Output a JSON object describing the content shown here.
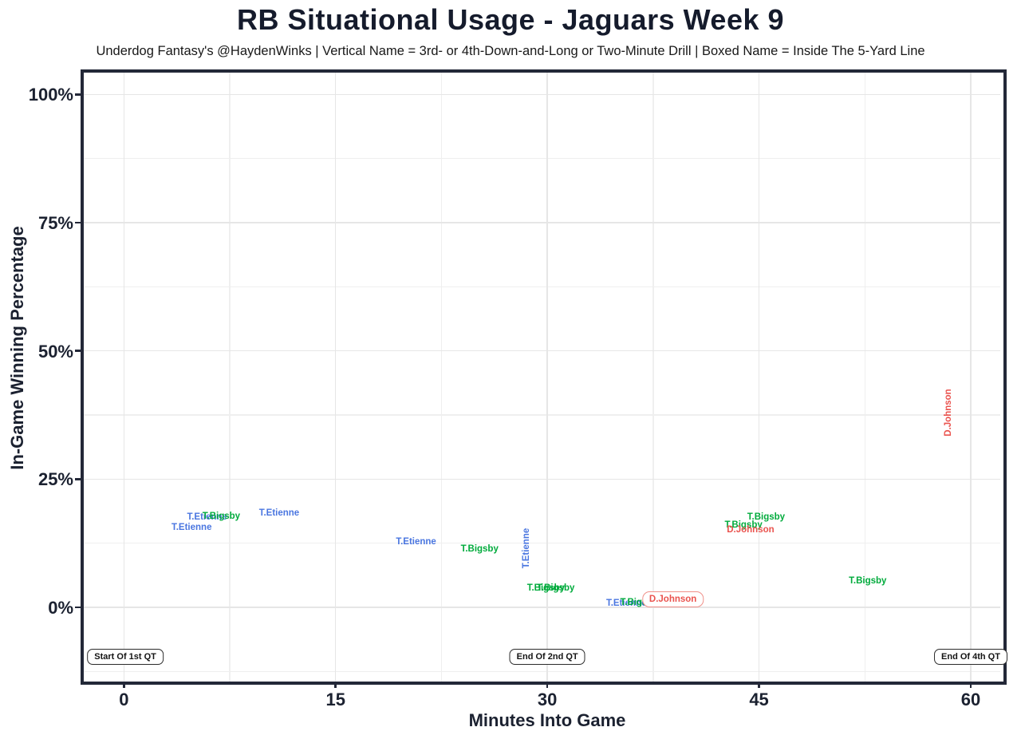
{
  "title": "RB Situational Usage - Jaguars Week 9",
  "subtitle": "Underdog Fantasy's @HaydenWinks | Vertical Name = 3rd- or 4th-Down-and-Long or Two-Minute Drill | Boxed Name = Inside The 5-Yard Line",
  "chart_data": {
    "type": "scatter",
    "title": "RB Situational Usage - Jaguars Week 9",
    "subtitle": "Underdog Fantasy's @HaydenWinks | Vertical Name = 3rd- or 4th-Down-and-Long or Two-Minute Drill | Boxed Name = Inside The 5-Yard Line",
    "xlabel": "Minutes Into Game",
    "ylabel": "In-Game Winning Percentage",
    "xlim": [
      -2.9,
      62.6
    ],
    "ylim": [
      -15.1,
      104.4
    ],
    "x_ticks": [
      {
        "value": 0,
        "label": "0"
      },
      {
        "value": 15,
        "label": "15"
      },
      {
        "value": 30,
        "label": "30"
      },
      {
        "value": 45,
        "label": "45"
      },
      {
        "value": 60,
        "label": "60"
      }
    ],
    "y_ticks": [
      {
        "value": 0,
        "label": "0%"
      },
      {
        "value": 25,
        "label": "25%"
      },
      {
        "value": 50,
        "label": "50%"
      },
      {
        "value": 75,
        "label": "75%"
      },
      {
        "value": 100,
        "label": "100%"
      }
    ],
    "x_minor_gridlines": [
      7.5,
      22.5,
      37.5,
      52.5
    ],
    "y_minor_gridlines": [
      -12.5,
      12.5,
      37.5,
      62.5,
      87.5
    ],
    "grid": "on",
    "legend": "none",
    "colors": {
      "T.Etienne": "#4a76e0",
      "T.Bigsby": "#00ab3c",
      "D.Johnson": "#ea534e",
      "box_border_red": "#f0918a",
      "major_grid": "#e6e6e6",
      "minor_grid": "#efefef",
      "axis": "#232838",
      "text": "#1b2130"
    },
    "points": [
      {
        "label": "T.Etienne",
        "minute": 4.8,
        "win_pct": 15.5,
        "player": "T.Etienne",
        "orientation": "horizontal",
        "boxed": false
      },
      {
        "label": "T.Etienne",
        "minute": 5.9,
        "win_pct": 17.5,
        "player": "T.Etienne",
        "orientation": "horizontal",
        "boxed": false
      },
      {
        "label": "T.Bigsby",
        "minute": 6.9,
        "win_pct": 17.7,
        "player": "T.Bigsby",
        "orientation": "horizontal",
        "boxed": false
      },
      {
        "label": "T.Etienne",
        "minute": 11.0,
        "win_pct": 18.3,
        "player": "T.Etienne",
        "orientation": "horizontal",
        "boxed": false
      },
      {
        "label": "T.Etienne",
        "minute": 20.7,
        "win_pct": 12.7,
        "player": "T.Etienne",
        "orientation": "horizontal",
        "boxed": false
      },
      {
        "label": "T.Bigsby",
        "minute": 25.2,
        "win_pct": 11.3,
        "player": "T.Bigsby",
        "orientation": "horizontal",
        "boxed": false
      },
      {
        "label": "T.Etienne",
        "minute": 28.5,
        "win_pct": 11.5,
        "player": "T.Etienne",
        "orientation": "vertical",
        "boxed": false
      },
      {
        "label": "T.Bigsby",
        "minute": 29.9,
        "win_pct": 3.7,
        "player": "T.Bigsby",
        "orientation": "horizontal",
        "boxed": false
      },
      {
        "label": "T.Bigsby",
        "minute": 30.6,
        "win_pct": 3.7,
        "player": "T.Bigsby",
        "orientation": "horizontal",
        "boxed": false
      },
      {
        "label": "T.Etienne",
        "minute": 35.6,
        "win_pct": 0.8,
        "player": "T.Etienne",
        "orientation": "horizontal",
        "boxed": false
      },
      {
        "label": "T.Bigsby",
        "minute": 36.5,
        "win_pct": 0.9,
        "player": "T.Bigsby",
        "orientation": "horizontal",
        "boxed": false
      },
      {
        "label": "D.Johnson",
        "minute": 38.9,
        "win_pct": 1.5,
        "player": "D.Johnson",
        "orientation": "horizontal",
        "boxed": true
      },
      {
        "label": "T.Bigsby",
        "minute": 43.9,
        "win_pct": 16.0,
        "player": "T.Bigsby",
        "orientation": "horizontal",
        "boxed": false
      },
      {
        "label": "D.Johnson",
        "minute": 44.4,
        "win_pct": 15.1,
        "player": "D.Johnson",
        "orientation": "horizontal",
        "boxed": false
      },
      {
        "label": "T.Bigsby",
        "minute": 45.5,
        "win_pct": 17.6,
        "player": "T.Bigsby",
        "orientation": "horizontal",
        "boxed": false
      },
      {
        "label": "T.Bigsby",
        "minute": 52.7,
        "win_pct": 5.1,
        "player": "T.Bigsby",
        "orientation": "horizontal",
        "boxed": false
      },
      {
        "label": "D.Johnson",
        "minute": 58.4,
        "win_pct": 38.0,
        "player": "D.Johnson",
        "orientation": "vertical",
        "boxed": false
      }
    ],
    "annotations": [
      {
        "label": "Start Of 1st QT",
        "minute": 0.1,
        "win_pct": -9.7
      },
      {
        "label": "End Of 2nd QT",
        "minute": 30.0,
        "win_pct": -9.7
      },
      {
        "label": "End Of 4th QT",
        "minute": 60.0,
        "win_pct": -9.7
      }
    ]
  }
}
